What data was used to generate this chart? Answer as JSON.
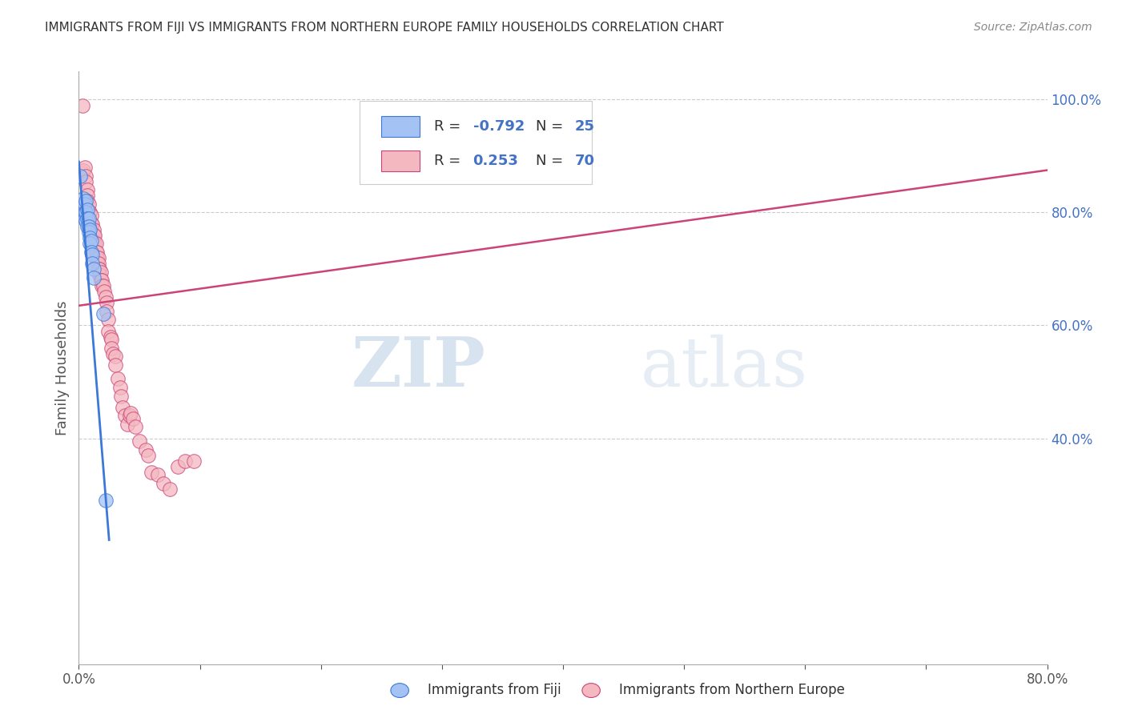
{
  "title": "IMMIGRANTS FROM FIJI VS IMMIGRANTS FROM NORTHERN EUROPE FAMILY HOUSEHOLDS CORRELATION CHART",
  "source": "Source: ZipAtlas.com",
  "ylabel": "Family Households",
  "fiji_color": "#a4c2f4",
  "fiji_color_line": "#3c78d8",
  "northern_color": "#f4b8c1",
  "northern_color_line": "#cc4477",
  "watermark_zip": "ZIP",
  "watermark_atlas": "atlas",
  "fiji_scatter_x": [
    0.001,
    0.004,
    0.005,
    0.005,
    0.005,
    0.006,
    0.006,
    0.006,
    0.007,
    0.007,
    0.007,
    0.008,
    0.008,
    0.008,
    0.009,
    0.009,
    0.009,
    0.01,
    0.01,
    0.011,
    0.011,
    0.012,
    0.012,
    0.02,
    0.022
  ],
  "fiji_scatter_y": [
    0.865,
    0.825,
    0.815,
    0.8,
    0.79,
    0.82,
    0.8,
    0.785,
    0.805,
    0.79,
    0.775,
    0.79,
    0.775,
    0.765,
    0.77,
    0.755,
    0.745,
    0.75,
    0.73,
    0.725,
    0.71,
    0.7,
    0.685,
    0.62,
    0.29
  ],
  "northern_scatter_x": [
    0.003,
    0.003,
    0.004,
    0.005,
    0.006,
    0.006,
    0.007,
    0.007,
    0.007,
    0.008,
    0.008,
    0.008,
    0.009,
    0.009,
    0.01,
    0.01,
    0.011,
    0.011,
    0.012,
    0.012,
    0.012,
    0.013,
    0.013,
    0.014,
    0.014,
    0.015,
    0.015,
    0.015,
    0.016,
    0.016,
    0.016,
    0.017,
    0.017,
    0.018,
    0.018,
    0.019,
    0.019,
    0.02,
    0.021,
    0.022,
    0.023,
    0.023,
    0.024,
    0.024,
    0.026,
    0.027,
    0.027,
    0.028,
    0.03,
    0.03,
    0.032,
    0.034,
    0.035,
    0.036,
    0.038,
    0.04,
    0.042,
    0.043,
    0.045,
    0.047,
    0.05,
    0.055,
    0.057,
    0.06,
    0.065,
    0.07,
    0.075,
    0.082,
    0.088,
    0.095
  ],
  "northern_scatter_y": [
    0.99,
    0.87,
    0.875,
    0.88,
    0.865,
    0.855,
    0.84,
    0.83,
    0.82,
    0.815,
    0.8,
    0.79,
    0.8,
    0.785,
    0.795,
    0.78,
    0.78,
    0.765,
    0.77,
    0.76,
    0.75,
    0.76,
    0.745,
    0.745,
    0.73,
    0.73,
    0.72,
    0.71,
    0.72,
    0.71,
    0.7,
    0.7,
    0.69,
    0.695,
    0.68,
    0.68,
    0.67,
    0.67,
    0.66,
    0.65,
    0.64,
    0.625,
    0.61,
    0.59,
    0.58,
    0.575,
    0.56,
    0.55,
    0.545,
    0.53,
    0.505,
    0.49,
    0.475,
    0.455,
    0.44,
    0.425,
    0.44,
    0.445,
    0.435,
    0.42,
    0.395,
    0.38,
    0.37,
    0.34,
    0.335,
    0.32,
    0.31,
    0.35,
    0.36,
    0.36
  ],
  "xlim": [
    0.0,
    0.8
  ],
  "ylim": [
    0.0,
    1.05
  ],
  "xtick_positions": [
    0.0,
    0.1,
    0.2,
    0.3,
    0.4,
    0.5,
    0.6,
    0.7,
    0.8
  ],
  "xtick_labels": [
    "0.0%",
    "",
    "",
    "",
    "",
    "",
    "",
    "",
    "80.0%"
  ],
  "right_ytick_positions": [
    1.0,
    0.8,
    0.6,
    0.4
  ],
  "right_ytick_labels": [
    "100.0%",
    "80.0%",
    "60.0%",
    "40.0%"
  ],
  "bottom_legend_fiji": "Immigrants from Fiji",
  "bottom_legend_northern": "Immigrants from Northern Europe"
}
